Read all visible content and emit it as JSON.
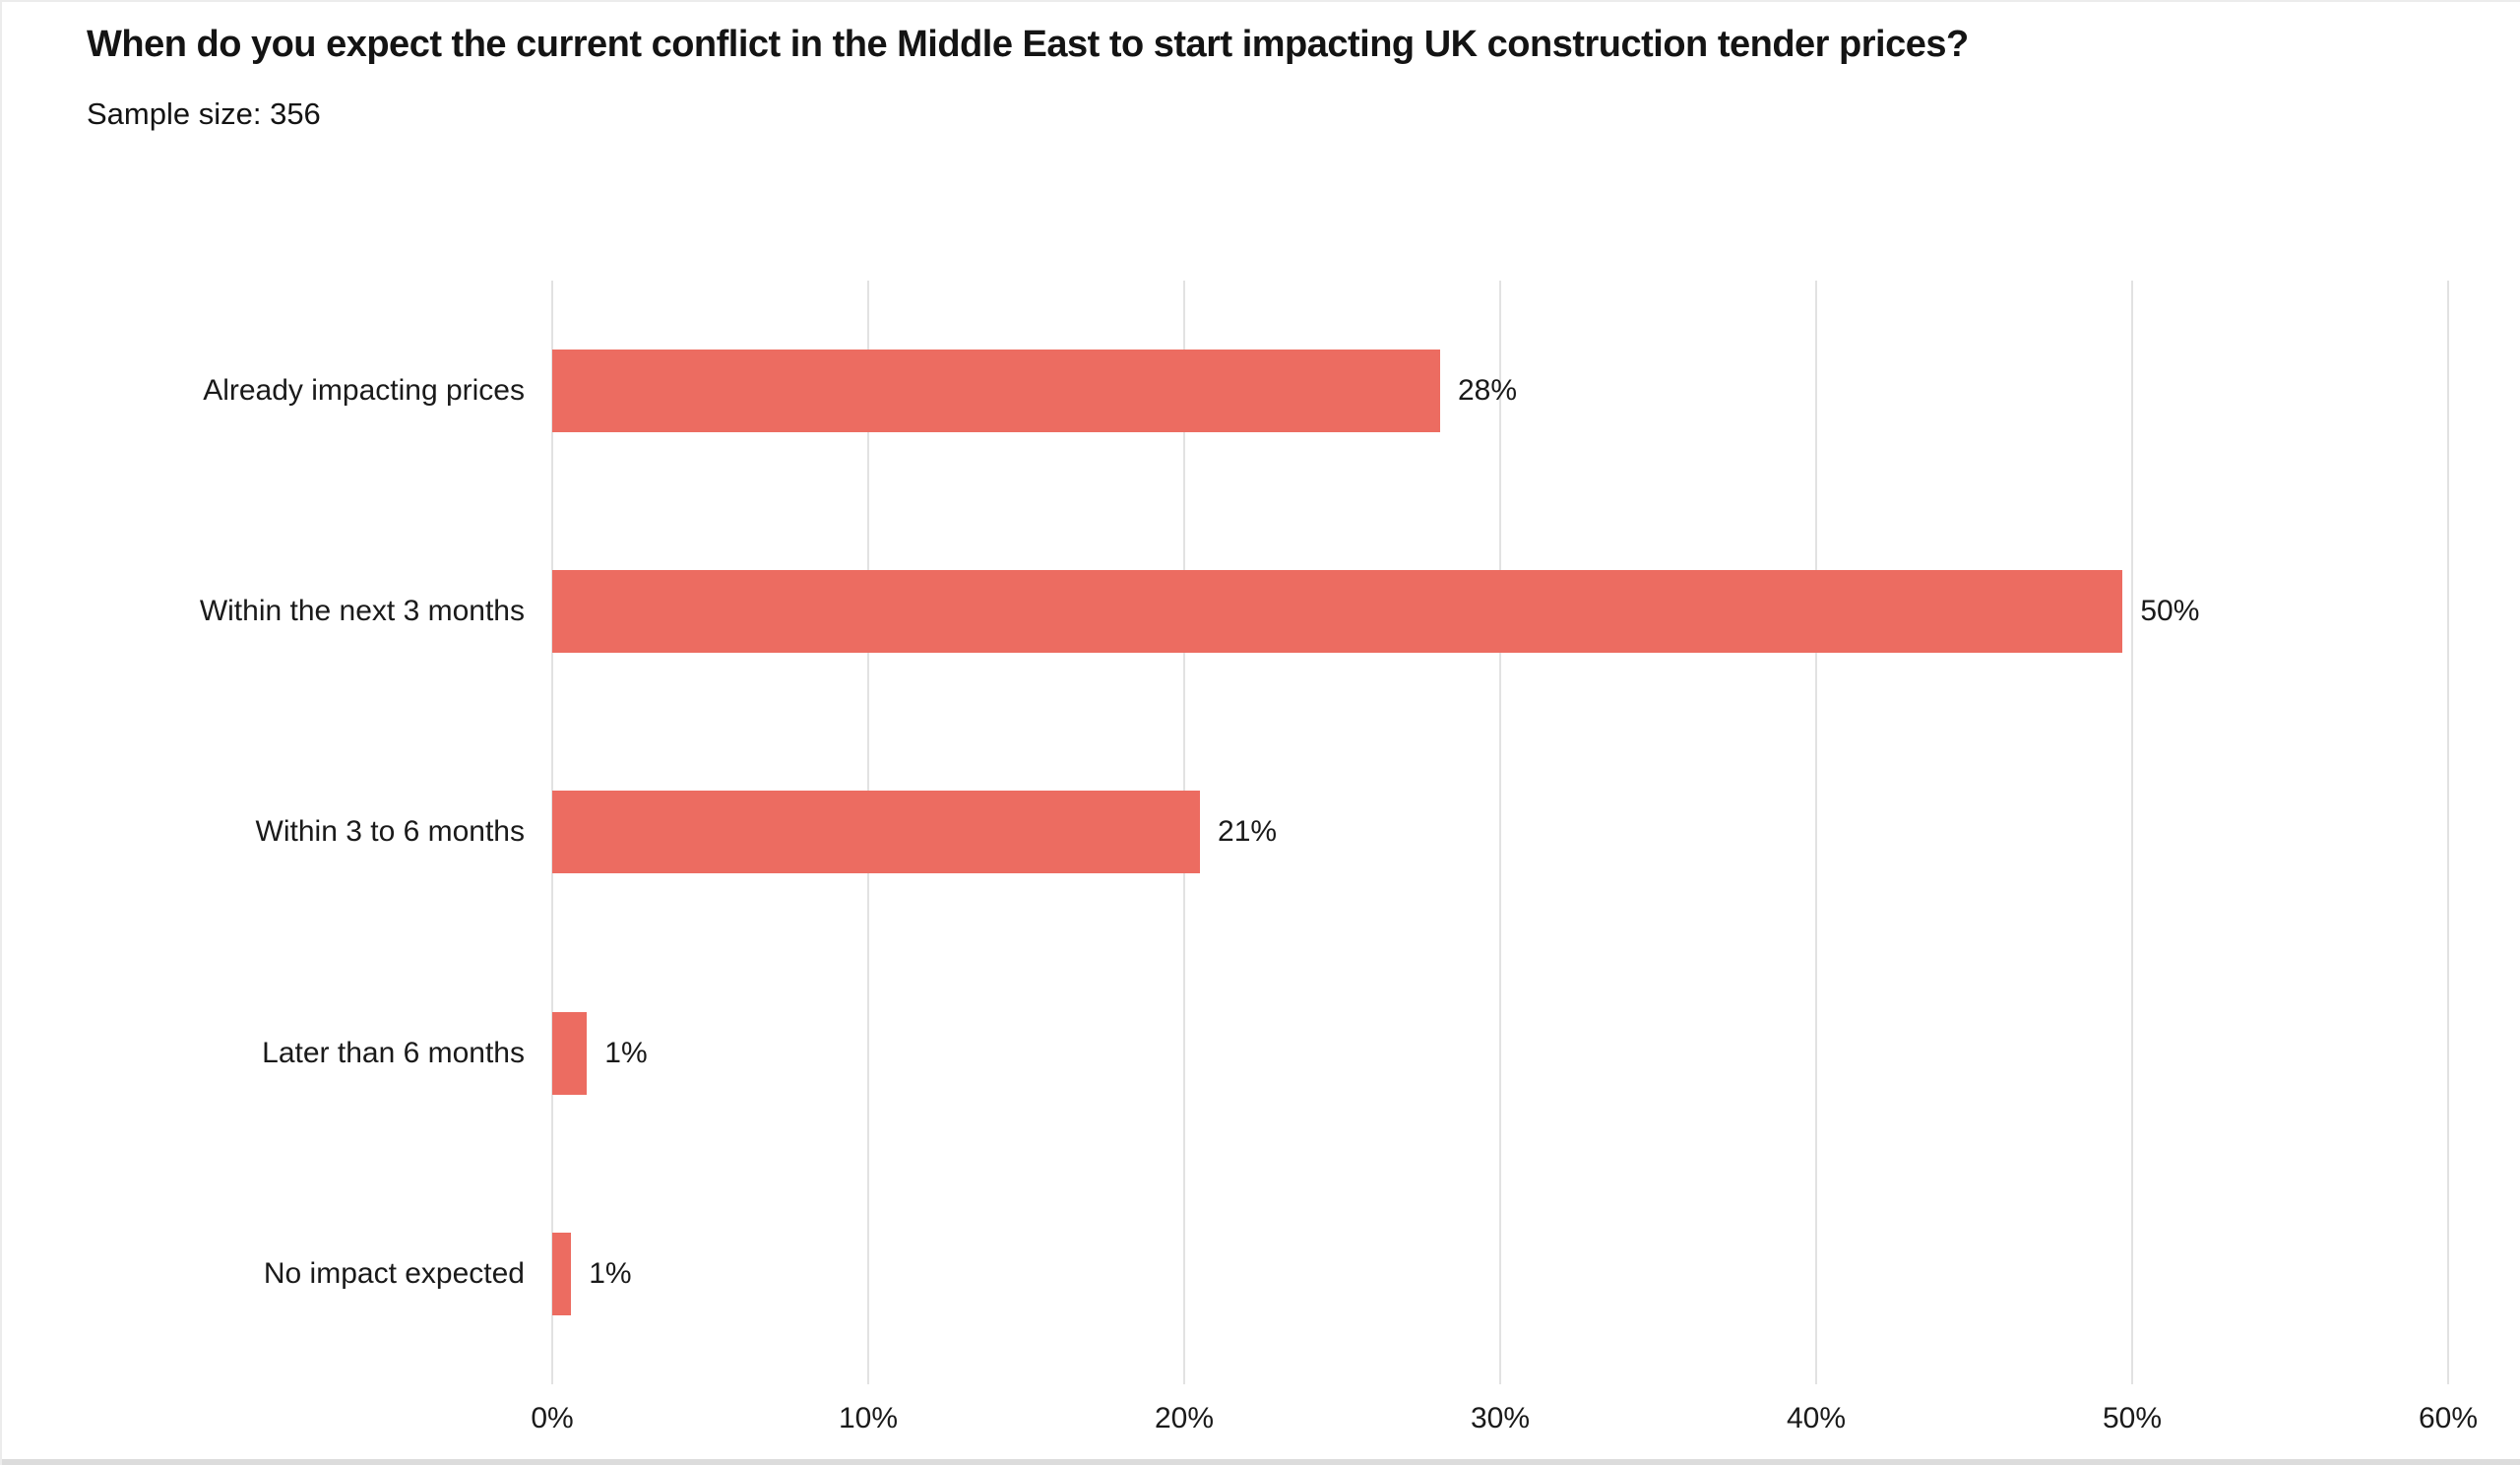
{
  "page": {
    "title": "When do you expect the current conflict in the Middle East to start impacting UK construction tender prices?",
    "sample_size": "Sample size: 356"
  },
  "chart_data": {
    "type": "bar",
    "orientation": "horizontal",
    "title": "When do you expect the current conflict in the Middle East to start impacting UK construction tender prices?",
    "subtitle": "Sample size: 356",
    "categories": [
      "Already impacting prices",
      "Within the next 3 months",
      "Within 3 to 6 months",
      "Later than 6 months",
      "No impact expected"
    ],
    "values": [
      28,
      50,
      21,
      1,
      1
    ],
    "value_labels": [
      "28%",
      "50%",
      "21%",
      "1%",
      "1%"
    ],
    "bar_length_pct_exact": [
      28.1,
      49.7,
      20.5,
      1.1,
      0.6
    ],
    "xlabel": "",
    "ylabel": "",
    "xlim": [
      0,
      60
    ],
    "x_ticks": [
      "0%",
      "10%",
      "20%",
      "30%",
      "40%",
      "50%",
      "60%"
    ],
    "x_tick_values": [
      0,
      10,
      20,
      30,
      40,
      50,
      60
    ],
    "grid": "vertical-only",
    "legend": "none",
    "colors": {
      "bar": "#EC6C61",
      "gridline": "#E2E2E2",
      "text": "#1A1A1A",
      "background": "#FFFFFF",
      "scrollbar": "#DCDCDC"
    }
  }
}
